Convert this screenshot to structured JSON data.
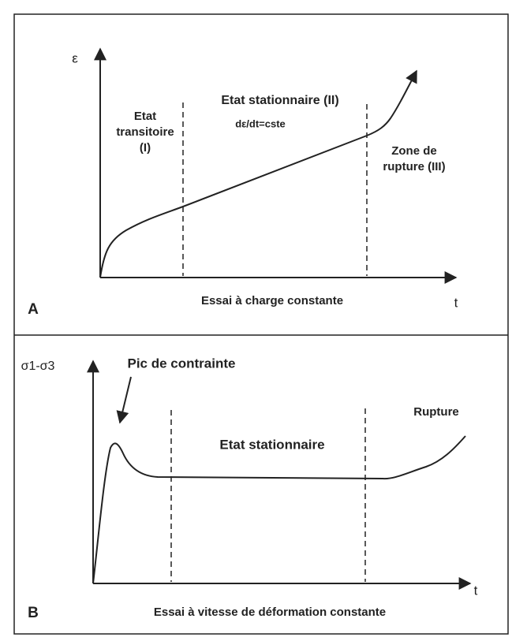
{
  "panel_a": {
    "letter": "A",
    "y_axis_label": "ε",
    "x_axis_label": "t",
    "phase_1": [
      "Etat",
      "transitoire",
      "(I)"
    ],
    "phase_2": "Etat stationnaire (II)",
    "phase_2_note": "dε/dt=cste",
    "phase_3": [
      "Zone de",
      "rupture (III)"
    ],
    "caption": "Essai à charge constante"
  },
  "panel_b": {
    "letter": "B",
    "y_axis_label": "σ1-σ3",
    "x_axis_label": "t",
    "peak_label": "Pic de contrainte",
    "phase_2": "Etat stationnaire",
    "phase_3": "Rupture",
    "caption": "Essai à vitesse de déformation constante"
  }
}
